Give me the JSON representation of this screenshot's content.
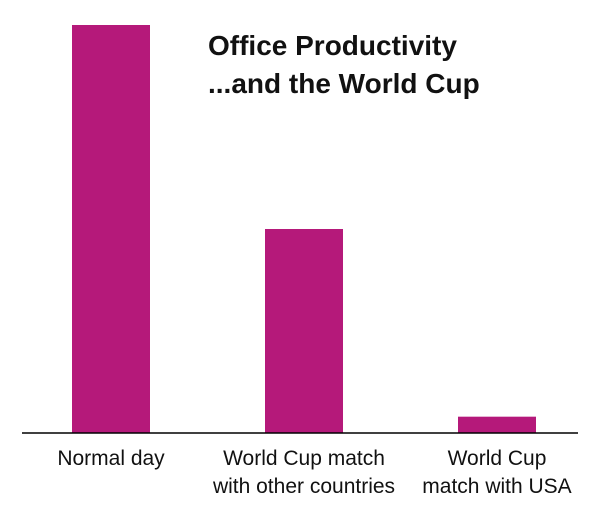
{
  "chart_data": {
    "type": "bar",
    "title": [
      "Office Productivity",
      "...and the World Cup"
    ],
    "categories": [
      [
        "Normal day"
      ],
      [
        "World Cup match",
        "with other countries"
      ],
      [
        "World Cup",
        "match with USA"
      ]
    ],
    "values": [
      100,
      50,
      4
    ],
    "ylim": [
      0,
      100
    ],
    "xlabel": "",
    "ylabel": "",
    "grid": false,
    "y_axis_visible": false,
    "bar_color": "#b5197a",
    "axis_color": "#000000"
  }
}
